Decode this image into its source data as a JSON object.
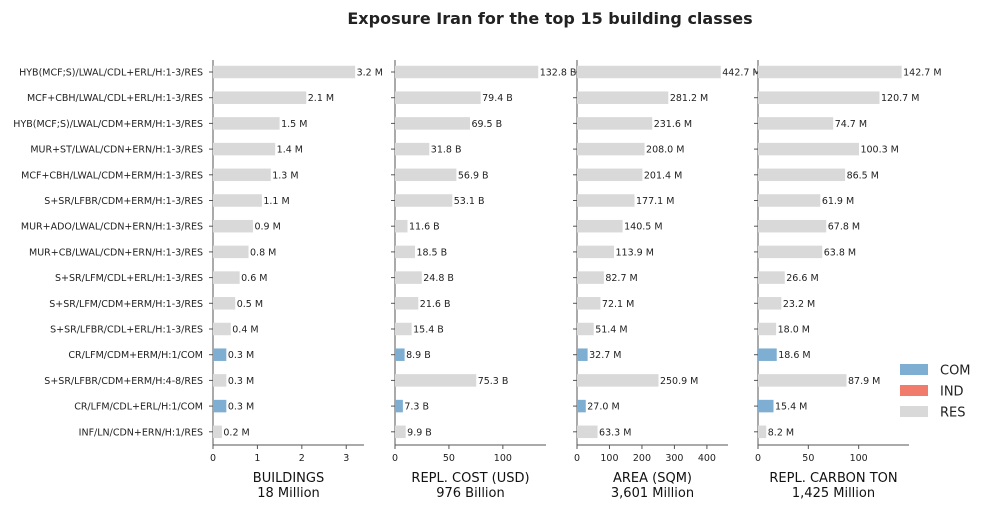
{
  "title": "Exposure Iran for the top 15 building classes",
  "legend": [
    {
      "label": "COM",
      "color": "#7eaed1"
    },
    {
      "label": "IND",
      "color": "#f17c6b"
    },
    {
      "label": "RES",
      "color": "#d9d9d9"
    }
  ],
  "chart_data": {
    "type": "bar",
    "orientation": "horizontal",
    "title": "Exposure Iran for the top 15 building classes",
    "legend_position": "right",
    "categories": [
      "HYB(MCF;S)/LWAL/CDL+ERL/H:1-3/RES",
      "MCF+CBH/LWAL/CDL+ERL/H:1-3/RES",
      "HYB(MCF;S)/LWAL/CDM+ERM/H:1-3/RES",
      "MUR+ST/LWAL/CDN+ERN/H:1-3/RES",
      "MCF+CBH/LWAL/CDM+ERM/H:1-3/RES",
      "S+SR/LFBR/CDM+ERM/H:1-3/RES",
      "MUR+ADO/LWAL/CDN+ERN/H:1-3/RES",
      "MUR+CB/LWAL/CDN+ERN/H:1-3/RES",
      "S+SR/LFM/CDL+ERL/H:1-3/RES",
      "S+SR/LFM/CDM+ERM/H:1-3/RES",
      "S+SR/LFBR/CDL+ERL/H:1-3/RES",
      "CR/LFM/CDM+ERM/H:1/COM",
      "S+SR/LFBR/CDM+ERM/H:4-8/RES",
      "CR/LFM/CDL+ERL/H:1/COM",
      "INF/LN/CDN+ERN/H:1/RES"
    ],
    "occupancy": [
      "RES",
      "RES",
      "RES",
      "RES",
      "RES",
      "RES",
      "RES",
      "RES",
      "RES",
      "RES",
      "RES",
      "COM",
      "RES",
      "COM",
      "RES"
    ],
    "panels": [
      {
        "xlabel": "BUILDINGS",
        "total": "18 Million",
        "xlim": [
          0,
          3.4
        ],
        "ticks": [
          0,
          1,
          2,
          3
        ],
        "values": [
          3.2,
          2.1,
          1.5,
          1.4,
          1.3,
          1.1,
          0.9,
          0.8,
          0.6,
          0.5,
          0.4,
          0.3,
          0.3,
          0.3,
          0.2
        ],
        "labels": [
          "3.2 M",
          "2.1 M",
          "1.5 M",
          "1.4 M",
          "1.3 M",
          "1.1 M",
          "0.9 M",
          "0.8 M",
          "0.6 M",
          "0.5 M",
          "0.4 M",
          "0.3 M",
          "0.3 M",
          "0.3 M",
          "0.2 M"
        ]
      },
      {
        "xlabel": "REPL. COST (USD)",
        "total": "976 Billion",
        "xlim": [
          0,
          140
        ],
        "ticks": [
          0,
          50,
          100
        ],
        "values": [
          132.8,
          79.4,
          69.5,
          31.8,
          56.9,
          53.1,
          11.6,
          18.5,
          24.8,
          21.6,
          15.4,
          8.9,
          75.3,
          7.3,
          9.9
        ],
        "labels": [
          "132.8 B",
          "79.4 B",
          "69.5 B",
          "31.8 B",
          "56.9 B",
          "53.1 B",
          "11.6 B",
          "18.5 B",
          "24.8 B",
          "21.6 B",
          "15.4 B",
          "8.9 B",
          "75.3 B",
          "7.3 B",
          "9.9 B"
        ]
      },
      {
        "xlabel": "AREA (SQM)",
        "total": "3,601 Million",
        "xlim": [
          0,
          465
        ],
        "ticks": [
          0,
          100,
          200,
          300,
          400
        ],
        "values": [
          442.7,
          281.2,
          231.6,
          208.0,
          201.4,
          177.1,
          140.5,
          113.9,
          82.7,
          72.1,
          51.4,
          32.7,
          250.9,
          27.0,
          63.3
        ],
        "labels": [
          "442.7 M",
          "281.2 M",
          "231.6 M",
          "208.0 M",
          "201.4 M",
          "177.1 M",
          "140.5 M",
          "113.9 M",
          "82.7 M",
          "72.1 M",
          "51.4 M",
          "32.7 M",
          "250.9 M",
          "27.0 M",
          "63.3 M"
        ]
      },
      {
        "xlabel": "REPL. CARBON TON",
        "total": "1,425 Million",
        "xlim": [
          0,
          150
        ],
        "ticks": [
          0,
          50,
          100
        ],
        "values": [
          142.7,
          120.7,
          74.7,
          100.3,
          86.5,
          61.9,
          67.8,
          63.8,
          26.6,
          23.2,
          18.0,
          18.6,
          87.9,
          15.4,
          8.2
        ],
        "labels": [
          "142.7 M",
          "120.7 M",
          "74.7 M",
          "100.3 M",
          "86.5 M",
          "61.9 M",
          "67.8 M",
          "63.8 M",
          "26.6 M",
          "23.2 M",
          "18.0 M",
          "18.6 M",
          "87.9 M",
          "15.4 M",
          "8.2 M"
        ]
      }
    ]
  }
}
